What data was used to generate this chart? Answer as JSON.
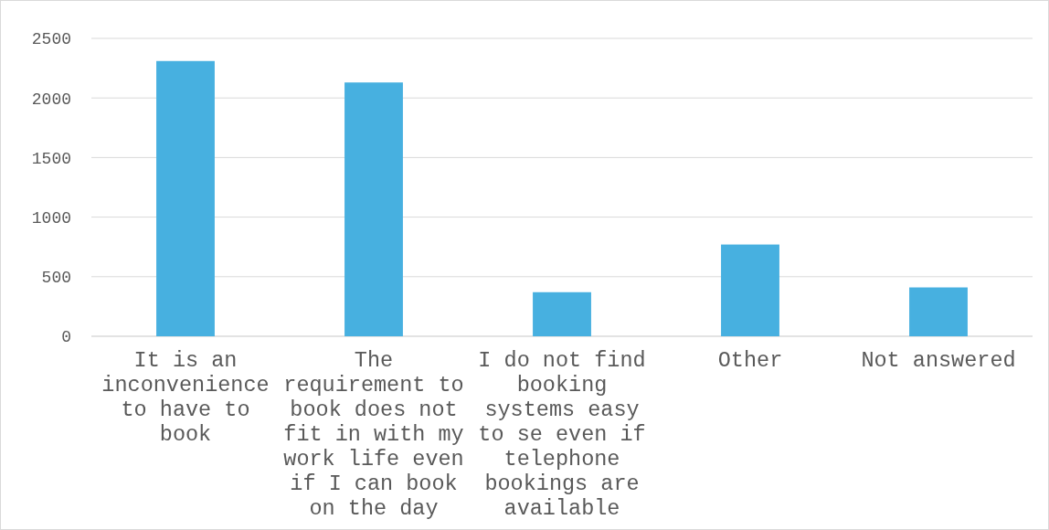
{
  "chart_data": {
    "type": "bar",
    "categories": [
      "It is an inconvenience to have to book",
      "The requirement to book does not fit in with my work life even if I can book on the day",
      "I do not find booking systems easy to se even if telephone bookings are available",
      "Other",
      "Not answered"
    ],
    "values": [
      2310,
      2130,
      370,
      770,
      410
    ],
    "color": "#47b0e0",
    "ylim": [
      0,
      2500
    ],
    "yticks": [
      0,
      500,
      1000,
      1500,
      2000,
      2500
    ],
    "grid": "y"
  }
}
